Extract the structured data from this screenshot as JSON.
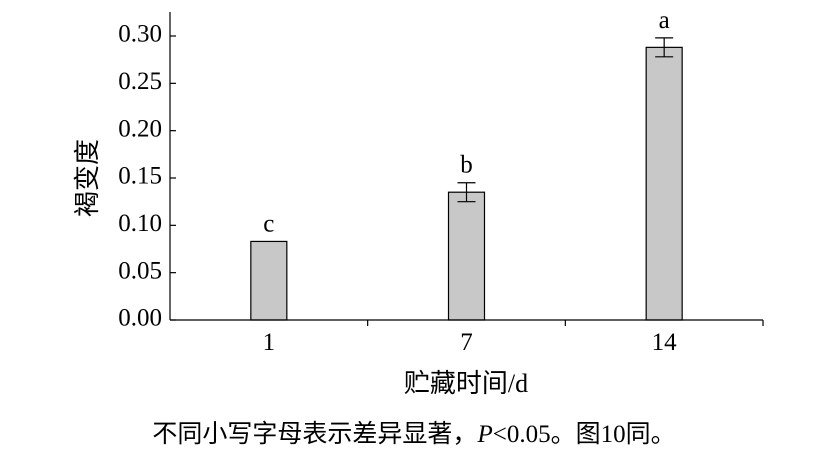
{
  "chart_data": {
    "type": "bar",
    "categories": [
      "1",
      "7",
      "14"
    ],
    "values": [
      0.083,
      0.135,
      0.288
    ],
    "error": [
      0.0,
      0.01,
      0.01
    ],
    "significance_letters": [
      "c",
      "b",
      "a"
    ],
    "xlabel": "贮藏时间/d",
    "ylabel": "褐变度",
    "ylim": [
      0,
      0.32
    ],
    "yticks": [
      "0.00",
      "0.05",
      "0.10",
      "0.15",
      "0.20",
      "0.25",
      "0.30"
    ],
    "ytick_values": [
      0,
      0.05,
      0.1,
      0.15,
      0.2,
      0.25,
      0.3
    ],
    "grid": false,
    "bar_color": "#c8c8c8"
  },
  "caption": {
    "prefix": "不同小写字母表示差异显著，",
    "p_symbol": "P",
    "suffix": "<0.05。图10同。"
  }
}
